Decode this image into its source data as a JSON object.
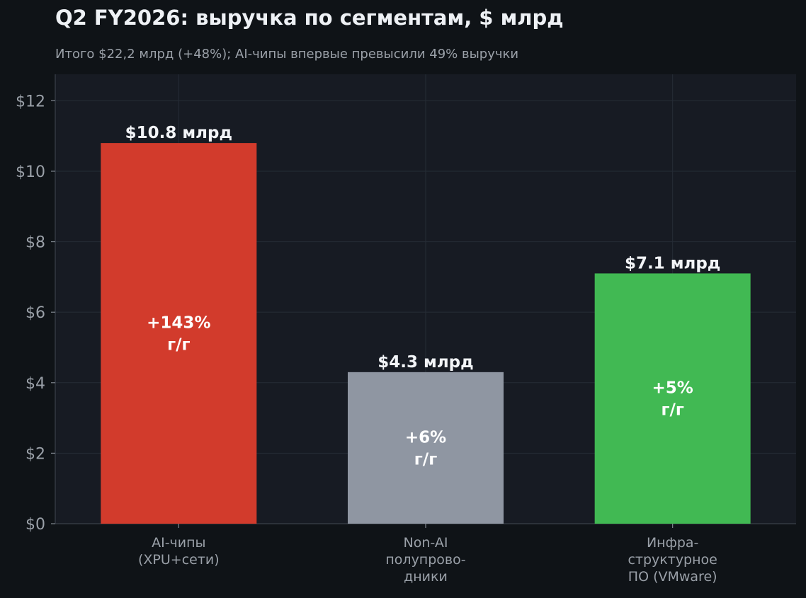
{
  "chart_data": {
    "type": "bar",
    "title": "Q2 FY2026: выручка по сегментам, $ млрд",
    "subtitle": "Итого $22,2 млрд (+48%); AI-чипы впервые превысили 49% выручки",
    "categories": [
      [
        "AI-чипы",
        "(XPU+сети)"
      ],
      [
        "Non-AI",
        "полупрово-",
        "дники"
      ],
      [
        "Инфра-",
        "структурное",
        "ПО (VMware)"
      ]
    ],
    "values": [
      10.8,
      4.3,
      7.1
    ],
    "value_labels": [
      "$10.8 млрд",
      "$4.3 млрд",
      "$7.1 млрд"
    ],
    "growth_labels": [
      [
        "+143%",
        "г/г"
      ],
      [
        "+6%",
        "г/г"
      ],
      [
        "+5%",
        "г/г"
      ]
    ],
    "colors": [
      "#d23b2c",
      "#8f96a2",
      "#41b953"
    ],
    "ylim": [
      0,
      12.75
    ],
    "yticks": [
      0,
      2,
      4,
      6,
      8,
      10,
      12
    ],
    "ytick_labels": [
      "$0",
      "$2",
      "$4",
      "$6",
      "$8",
      "$10",
      "$12"
    ],
    "grid": true,
    "xlabel": "",
    "ylabel": ""
  }
}
